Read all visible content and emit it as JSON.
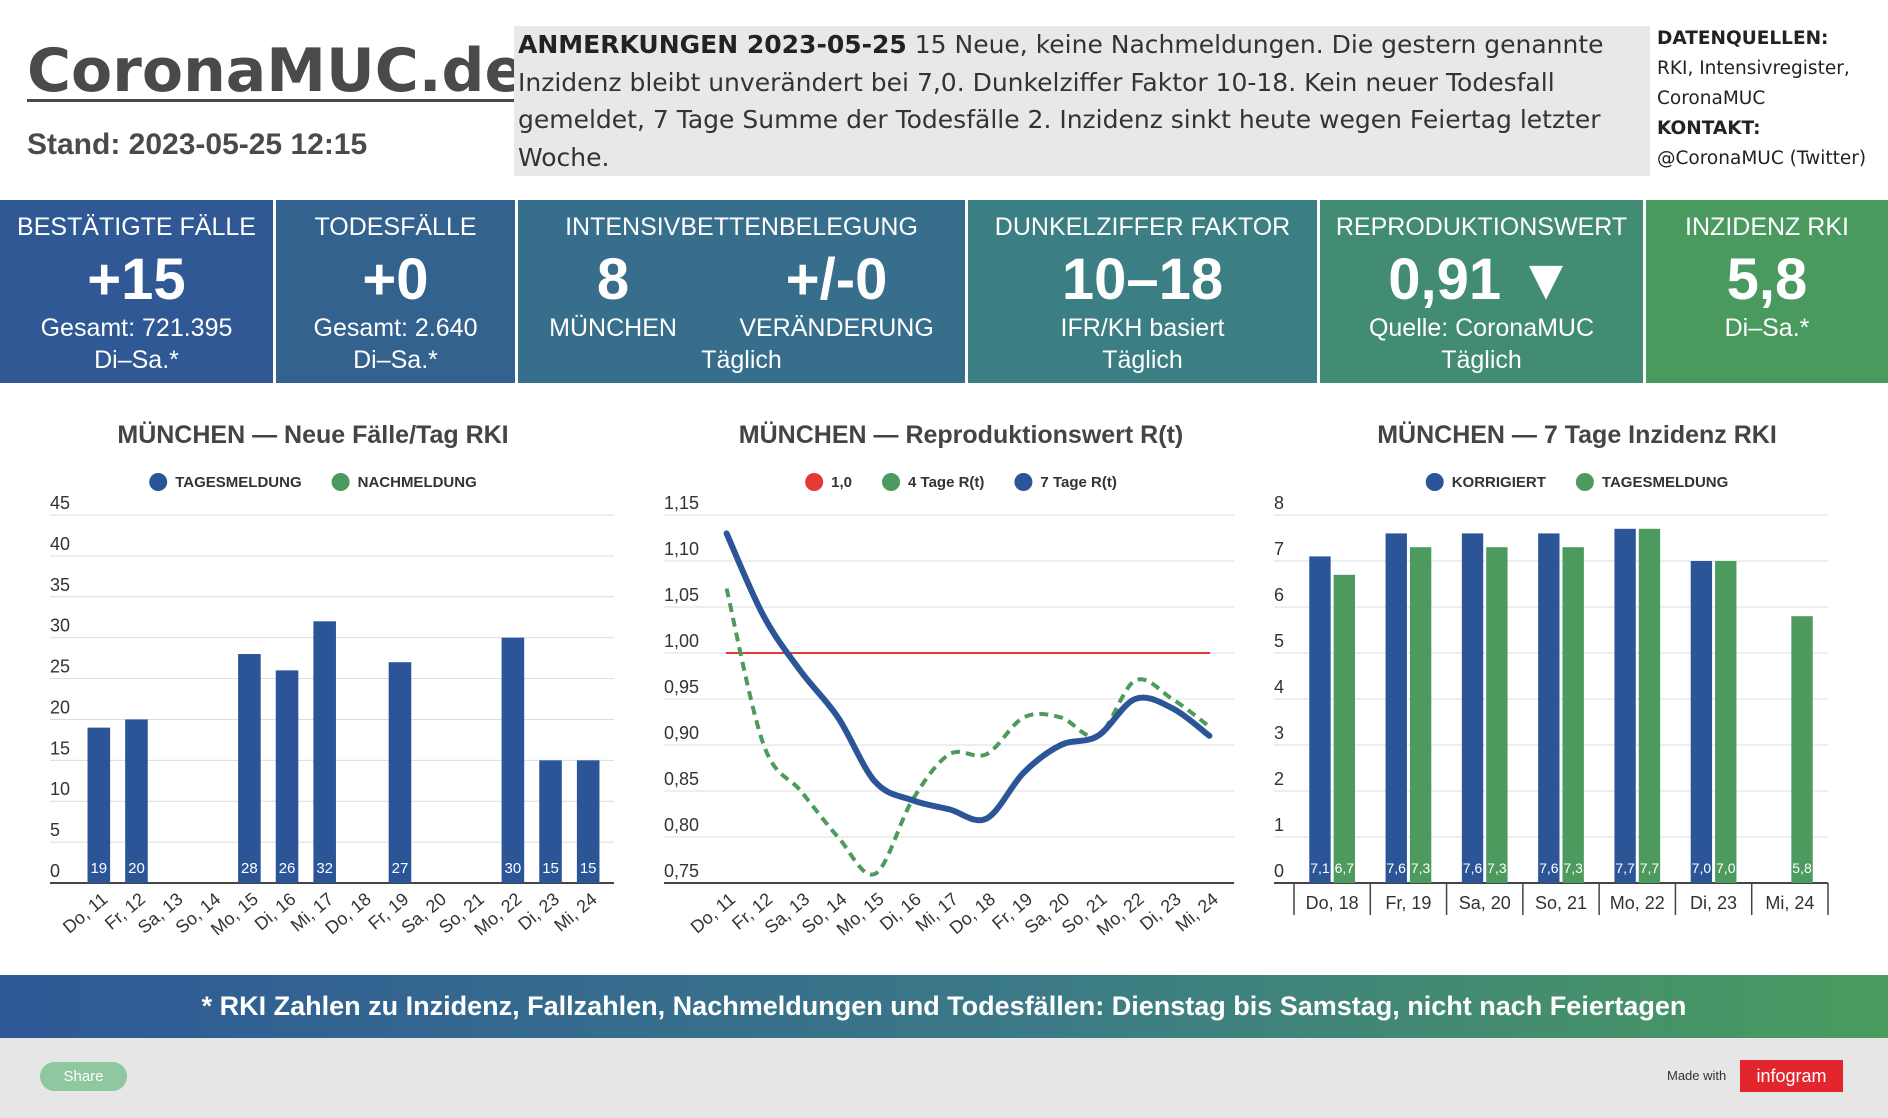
{
  "header": {
    "title": "CoronaMUC.de",
    "stand": "Stand: 2023-05-25 12:15",
    "notes_label": "ANMERKUNGEN 2023-05-25",
    "notes_text": "15 Neue, keine Nachmeldungen. Die gestern genannte Inzidenz bleibt unverändert bei 7,0. Dunkelziffer Faktor 10-18. Kein neuer Todesfall gemeldet, 7 Tage Summe der Todesfälle 2. Inzidenz sinkt heute wegen Feiertag letzter Woche.",
    "sources_label": "DATENQUELLEN:",
    "sources": "RKI, Intensivregister, CoronaMUC",
    "contact_label": "KONTAKT:",
    "contact": "@CoronaMUC (Twitter)"
  },
  "kpis": [
    {
      "title": "BESTÄTIGTE FÄLLE",
      "value": "+15",
      "lines": [
        "Gesamt: 721.395",
        "Di–Sa.*"
      ]
    },
    {
      "title": "TODESFÄLLE",
      "value": "+0",
      "lines": [
        "Gesamt: 2.640",
        "Di–Sa.*"
      ]
    },
    {
      "title": "INTENSIVBETTENBELEGUNG",
      "items": [
        {
          "value": "8",
          "label": "MÜNCHEN"
        },
        {
          "value": "+/-0",
          "label": "VERÄNDERUNG"
        }
      ],
      "lines": [
        "Täglich"
      ]
    },
    {
      "title": "DUNKELZIFFER FAKTOR",
      "value": "10–18",
      "lines": [
        "IFR/KH basiert",
        "Täglich"
      ]
    },
    {
      "title": "REPRODUKTIONSWERT",
      "value": "0,91 ▼",
      "lines": [
        "Quelle: CoronaMUC",
        "Täglich"
      ]
    },
    {
      "title": "INZIDENZ RKI",
      "value": "5,8",
      "lines": [
        "Di–Sa.*"
      ]
    }
  ],
  "chart_data": [
    {
      "type": "bar",
      "stacked": true,
      "title": "MÜNCHEN — Neue Fälle/Tag RKI",
      "categories": [
        "Do, 11",
        "Fr, 12",
        "Sa, 13",
        "So, 14",
        "Mo, 15",
        "Di, 16",
        "Mi, 17",
        "Do, 18",
        "Fr, 19",
        "Sa, 20",
        "So, 21",
        "Mo, 22",
        "Di, 23",
        "Mi, 24"
      ],
      "series": [
        {
          "name": "TAGESMELDUNG",
          "color": "#2b5597",
          "values": [
            19,
            20,
            null,
            null,
            28,
            26,
            32,
            null,
            27,
            null,
            null,
            30,
            15,
            15
          ]
        },
        {
          "name": "NACHMELDUNG",
          "color": "#4c9a5d",
          "values": [
            null,
            null,
            null,
            null,
            null,
            null,
            null,
            null,
            null,
            null,
            null,
            null,
            null,
            null
          ]
        }
      ],
      "ylim": [
        0,
        45
      ],
      "yticks": [
        0,
        5,
        10,
        15,
        20,
        25,
        30,
        35,
        40,
        45
      ],
      "grid": true
    },
    {
      "type": "line",
      "title": "MÜNCHEN — Reproduktionswert R(t)",
      "categories": [
        "Do, 11",
        "Fr, 12",
        "Sa, 13",
        "So, 14",
        "Mo, 15",
        "Di, 16",
        "Mi, 17",
        "Do, 18",
        "Fr, 19",
        "Sa, 20",
        "So, 21",
        "Mo, 22",
        "Di, 23",
        "Mi, 24"
      ],
      "series": [
        {
          "name": "1,0",
          "color": "#e53935",
          "dashed": false,
          "width": 2,
          "values": [
            1.0,
            1.0,
            1.0,
            1.0,
            1.0,
            1.0,
            1.0,
            1.0,
            1.0,
            1.0,
            1.0,
            1.0,
            1.0,
            1.0
          ]
        },
        {
          "name": "4 Tage R(t)",
          "color": "#4c9a5d",
          "dashed": true,
          "width": 4,
          "values": [
            1.07,
            0.9,
            0.85,
            0.8,
            0.76,
            0.84,
            0.89,
            0.89,
            0.93,
            0.93,
            0.91,
            0.97,
            0.95,
            0.92
          ]
        },
        {
          "name": "7 Tage R(t)",
          "color": "#2b5597",
          "dashed": false,
          "width": 6,
          "values": [
            1.13,
            1.04,
            0.98,
            0.93,
            0.86,
            0.84,
            0.83,
            0.82,
            0.87,
            0.9,
            0.91,
            0.95,
            0.94,
            0.91
          ]
        }
      ],
      "ylim": [
        0.75,
        1.15
      ],
      "yticks": [
        {
          "value": 0.75,
          "label": "0,75"
        },
        {
          "value": 0.8,
          "label": "0,80"
        },
        {
          "value": 0.85,
          "label": "0,85"
        },
        {
          "value": 0.9,
          "label": "0,90"
        },
        {
          "value": 0.95,
          "label": "0,95"
        },
        {
          "value": 1.0,
          "label": "1,00"
        },
        {
          "value": 1.05,
          "label": "1,05"
        },
        {
          "value": 1.1,
          "label": "1,10"
        },
        {
          "value": 1.15,
          "label": "1,15"
        }
      ],
      "grid": true
    },
    {
      "type": "bar",
      "stacked": false,
      "title": "MÜNCHEN — 7 Tage Inzidenz RKI",
      "categories": [
        "Do, 18",
        "Fr, 19",
        "Sa, 20",
        "So, 21",
        "Mo, 22",
        "Di, 23",
        "Mi, 24"
      ],
      "series": [
        {
          "name": "KORRIGIERT",
          "color": "#2b5597",
          "values": [
            7.1,
            7.6,
            7.6,
            7.6,
            7.7,
            7.0,
            null
          ],
          "value_labels": [
            "7,1",
            "7,6",
            "7,6",
            "7,6",
            "7,7",
            "7,0",
            null
          ]
        },
        {
          "name": "TAGESMELDUNG",
          "color": "#4c9a5d",
          "values": [
            6.7,
            7.3,
            7.3,
            7.3,
            7.7,
            7.0,
            5.8
          ],
          "value_labels": [
            "6,7",
            "7,3",
            "7,3",
            "7,3",
            "7,7",
            "7,0",
            "5,8"
          ]
        }
      ],
      "ylim": [
        0,
        8
      ],
      "yticks": [
        0,
        1,
        2,
        3,
        4,
        5,
        6,
        7,
        8
      ],
      "grid": true
    }
  ],
  "footer": {
    "text": "* RKI Zahlen zu Inzidenz, Fallzahlen, Nachmeldungen und Todesfällen: Dienstag bis Samstag, nicht nach Feiertagen",
    "share": "Share",
    "made_with": "Made with",
    "brand": "infogram"
  }
}
